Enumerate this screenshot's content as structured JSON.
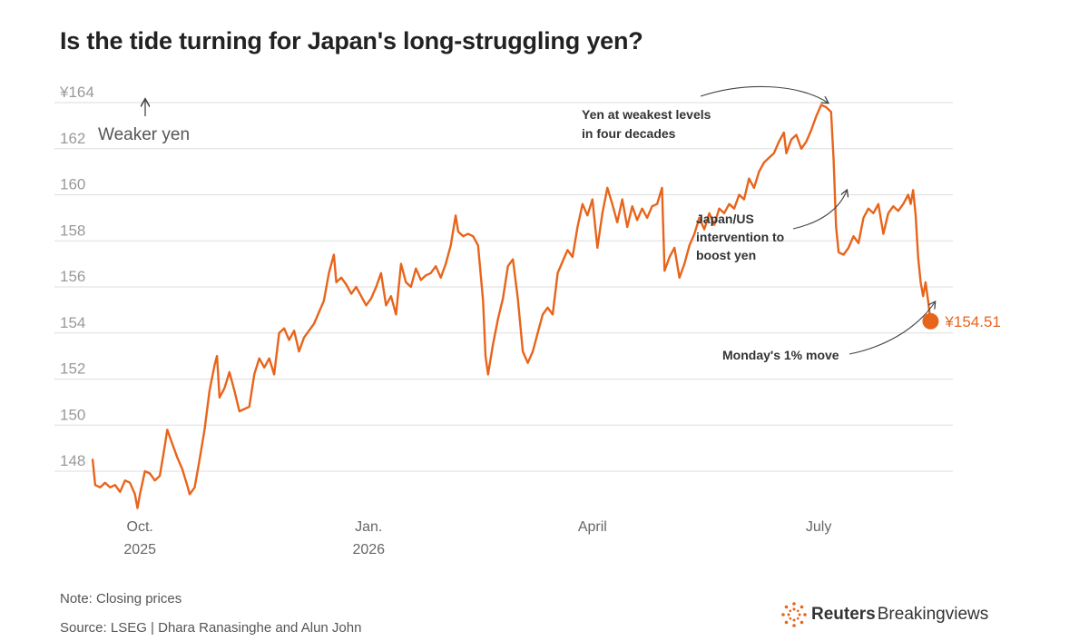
{
  "title": "Is the tide turning for Japan's long-struggling yen?",
  "note": "Note: Closing prices",
  "source": "Source: LSEG | Dhara Ranasinghe and Alun John",
  "brand": {
    "bold": "Reuters",
    "regular": "Breakingviews",
    "icon": "reuters-logo-icon"
  },
  "colors": {
    "line": "#e8641b",
    "grid": "#dddddd",
    "axis_text": "#9a9a9a"
  },
  "chart_data": {
    "type": "line",
    "title": "Is the tide turning for Japan's long-struggling yen?",
    "ylim": [
      146,
      164
    ],
    "y_ticks": [
      148,
      150,
      152,
      154,
      156,
      158,
      160,
      162,
      164
    ],
    "y_tick_labels": [
      "148",
      "150",
      "152",
      "154",
      "156",
      "158",
      "160",
      "162",
      "¥164"
    ],
    "x_ticks": [
      {
        "date": "2025-10-01",
        "label": [
          "Oct.",
          "2025"
        ]
      },
      {
        "date": "2026-01-01",
        "label": [
          "Jan.",
          "2026"
        ]
      },
      {
        "date": "2026-04-01",
        "label": [
          "April"
        ]
      },
      {
        "date": "2026-07-01",
        "label": [
          "July"
        ]
      }
    ],
    "xlim": [
      "2025-09-01",
      "2026-09-01"
    ],
    "grid": true,
    "direction_label": "Weaker yen",
    "last_value_label": "¥154.51",
    "annotations": [
      {
        "lines": [
          "Yen at weakest levels",
          "in four decades"
        ]
      },
      {
        "lines": [
          "Japan/US",
          "intervention to",
          "boost yen"
        ]
      },
      {
        "lines": [
          "Monday's 1% move"
        ]
      }
    ],
    "series": [
      {
        "values": [
          [
            "2025-09-12",
            148.5
          ],
          [
            "2025-09-13",
            147.4
          ],
          [
            "2025-09-15",
            147.3
          ],
          [
            "2025-09-17",
            147.5
          ],
          [
            "2025-09-19",
            147.3
          ],
          [
            "2025-09-21",
            147.4
          ],
          [
            "2025-09-23",
            147.1
          ],
          [
            "2025-09-25",
            147.6
          ],
          [
            "2025-09-27",
            147.5
          ],
          [
            "2025-09-29",
            147.0
          ],
          [
            "2025-09-30",
            146.4
          ],
          [
            "2025-10-01",
            147.0
          ],
          [
            "2025-10-03",
            148.0
          ],
          [
            "2025-10-05",
            147.9
          ],
          [
            "2025-10-07",
            147.6
          ],
          [
            "2025-10-09",
            147.8
          ],
          [
            "2025-10-11",
            149.1
          ],
          [
            "2025-10-12",
            149.8
          ],
          [
            "2025-10-14",
            149.2
          ],
          [
            "2025-10-16",
            148.6
          ],
          [
            "2025-10-18",
            148.1
          ],
          [
            "2025-10-20",
            147.4
          ],
          [
            "2025-10-21",
            147.0
          ],
          [
            "2025-10-23",
            147.3
          ],
          [
            "2025-10-25",
            148.5
          ],
          [
            "2025-10-27",
            149.8
          ],
          [
            "2025-10-29",
            151.5
          ],
          [
            "2025-10-31",
            152.6
          ],
          [
            "2025-11-01",
            153.0
          ],
          [
            "2025-11-02",
            151.2
          ],
          [
            "2025-11-04",
            151.6
          ],
          [
            "2025-11-06",
            152.3
          ],
          [
            "2025-11-08",
            151.5
          ],
          [
            "2025-11-10",
            150.6
          ],
          [
            "2025-11-12",
            150.7
          ],
          [
            "2025-11-14",
            150.8
          ],
          [
            "2025-11-16",
            152.2
          ],
          [
            "2025-11-18",
            152.9
          ],
          [
            "2025-11-20",
            152.5
          ],
          [
            "2025-11-22",
            152.9
          ],
          [
            "2025-11-24",
            152.2
          ],
          [
            "2025-11-26",
            154.0
          ],
          [
            "2025-11-28",
            154.2
          ],
          [
            "2025-11-30",
            153.7
          ],
          [
            "2025-12-02",
            154.1
          ],
          [
            "2025-12-04",
            153.2
          ],
          [
            "2025-12-06",
            153.8
          ],
          [
            "2025-12-08",
            154.1
          ],
          [
            "2025-12-10",
            154.4
          ],
          [
            "2025-12-12",
            154.9
          ],
          [
            "2025-12-14",
            155.4
          ],
          [
            "2025-12-16",
            156.6
          ],
          [
            "2025-12-18",
            157.4
          ],
          [
            "2025-12-19",
            156.2
          ],
          [
            "2025-12-21",
            156.4
          ],
          [
            "2025-12-23",
            156.1
          ],
          [
            "2025-12-25",
            155.7
          ],
          [
            "2025-12-27",
            156.0
          ],
          [
            "2025-12-29",
            155.6
          ],
          [
            "2025-12-31",
            155.2
          ],
          [
            "2026-01-02",
            155.5
          ],
          [
            "2026-01-04",
            156.0
          ],
          [
            "2026-01-06",
            156.6
          ],
          [
            "2026-01-08",
            155.2
          ],
          [
            "2026-01-10",
            155.6
          ],
          [
            "2026-01-12",
            154.8
          ],
          [
            "2026-01-14",
            157.0
          ],
          [
            "2026-01-16",
            156.2
          ],
          [
            "2026-01-18",
            156.0
          ],
          [
            "2026-01-20",
            156.8
          ],
          [
            "2026-01-22",
            156.3
          ],
          [
            "2026-01-24",
            156.5
          ],
          [
            "2026-01-26",
            156.6
          ],
          [
            "2026-01-28",
            156.9
          ],
          [
            "2026-01-30",
            156.4
          ],
          [
            "2026-02-01",
            157.0
          ],
          [
            "2026-02-03",
            157.8
          ],
          [
            "2026-02-05",
            159.1
          ],
          [
            "2026-02-06",
            158.4
          ],
          [
            "2026-02-08",
            158.2
          ],
          [
            "2026-02-10",
            158.3
          ],
          [
            "2026-02-12",
            158.2
          ],
          [
            "2026-02-14",
            157.8
          ],
          [
            "2026-02-16",
            155.4
          ],
          [
            "2026-02-17",
            153.0
          ],
          [
            "2026-02-18",
            152.2
          ],
          [
            "2026-02-20",
            153.5
          ],
          [
            "2026-02-22",
            154.6
          ],
          [
            "2026-02-24",
            155.5
          ],
          [
            "2026-02-26",
            156.9
          ],
          [
            "2026-02-28",
            157.2
          ],
          [
            "2026-03-02",
            155.5
          ],
          [
            "2026-03-04",
            153.2
          ],
          [
            "2026-03-06",
            152.7
          ],
          [
            "2026-03-08",
            153.2
          ],
          [
            "2026-03-10",
            154.0
          ],
          [
            "2026-03-12",
            154.8
          ],
          [
            "2026-03-14",
            155.1
          ],
          [
            "2026-03-16",
            154.8
          ],
          [
            "2026-03-18",
            156.6
          ],
          [
            "2026-03-20",
            157.1
          ],
          [
            "2026-03-22",
            157.6
          ],
          [
            "2026-03-24",
            157.3
          ],
          [
            "2026-03-26",
            158.6
          ],
          [
            "2026-03-28",
            159.6
          ],
          [
            "2026-03-30",
            159.1
          ],
          [
            "2026-04-01",
            159.8
          ],
          [
            "2026-04-03",
            157.7
          ],
          [
            "2026-04-05",
            159.2
          ],
          [
            "2026-04-07",
            160.3
          ],
          [
            "2026-04-09",
            159.6
          ],
          [
            "2026-04-11",
            158.8
          ],
          [
            "2026-04-13",
            159.8
          ],
          [
            "2026-04-15",
            158.6
          ],
          [
            "2026-04-17",
            159.5
          ],
          [
            "2026-04-19",
            158.9
          ],
          [
            "2026-04-21",
            159.4
          ],
          [
            "2026-04-23",
            159.0
          ],
          [
            "2026-04-25",
            159.5
          ],
          [
            "2026-04-27",
            159.6
          ],
          [
            "2026-04-29",
            160.3
          ],
          [
            "2026-04-30",
            156.7
          ],
          [
            "2026-05-02",
            157.3
          ],
          [
            "2026-05-04",
            157.7
          ],
          [
            "2026-05-06",
            156.4
          ],
          [
            "2026-05-08",
            157.0
          ],
          [
            "2026-05-10",
            157.8
          ],
          [
            "2026-05-12",
            158.3
          ],
          [
            "2026-05-14",
            159.0
          ],
          [
            "2026-05-16",
            158.5
          ],
          [
            "2026-05-18",
            159.2
          ],
          [
            "2026-05-20",
            158.7
          ],
          [
            "2026-05-22",
            159.4
          ],
          [
            "2026-05-24",
            159.2
          ],
          [
            "2026-05-26",
            159.6
          ],
          [
            "2026-05-28",
            159.4
          ],
          [
            "2026-05-30",
            160.0
          ],
          [
            "2026-06-01",
            159.8
          ],
          [
            "2026-06-03",
            160.7
          ],
          [
            "2026-06-05",
            160.3
          ],
          [
            "2026-06-07",
            161.0
          ],
          [
            "2026-06-09",
            161.4
          ],
          [
            "2026-06-11",
            161.6
          ],
          [
            "2026-06-13",
            161.8
          ],
          [
            "2026-06-15",
            162.3
          ],
          [
            "2026-06-17",
            162.7
          ],
          [
            "2026-06-18",
            161.8
          ],
          [
            "2026-06-20",
            162.4
          ],
          [
            "2026-06-22",
            162.6
          ],
          [
            "2026-06-24",
            162.0
          ],
          [
            "2026-06-26",
            162.3
          ],
          [
            "2026-06-28",
            162.8
          ],
          [
            "2026-06-30",
            163.4
          ],
          [
            "2026-07-02",
            163.9
          ],
          [
            "2026-07-04",
            163.8
          ],
          [
            "2026-07-06",
            163.6
          ],
          [
            "2026-07-07",
            161.5
          ],
          [
            "2026-07-08",
            158.6
          ],
          [
            "2026-07-09",
            157.5
          ],
          [
            "2026-07-11",
            157.4
          ],
          [
            "2026-07-13",
            157.7
          ],
          [
            "2026-07-15",
            158.2
          ],
          [
            "2026-07-17",
            157.9
          ],
          [
            "2026-07-19",
            159.0
          ],
          [
            "2026-07-21",
            159.4
          ],
          [
            "2026-07-23",
            159.2
          ],
          [
            "2026-07-25",
            159.6
          ],
          [
            "2026-07-27",
            158.3
          ],
          [
            "2026-07-29",
            159.2
          ],
          [
            "2026-07-31",
            159.5
          ],
          [
            "2026-08-02",
            159.3
          ],
          [
            "2026-08-04",
            159.6
          ],
          [
            "2026-08-06",
            160.0
          ],
          [
            "2026-08-07",
            159.6
          ],
          [
            "2026-08-08",
            160.2
          ],
          [
            "2026-08-09",
            159.1
          ],
          [
            "2026-08-10",
            157.3
          ],
          [
            "2026-08-11",
            156.2
          ],
          [
            "2026-08-12",
            155.6
          ],
          [
            "2026-08-13",
            156.2
          ],
          [
            "2026-08-14",
            155.4
          ],
          [
            "2026-08-15",
            154.51
          ]
        ]
      }
    ]
  }
}
